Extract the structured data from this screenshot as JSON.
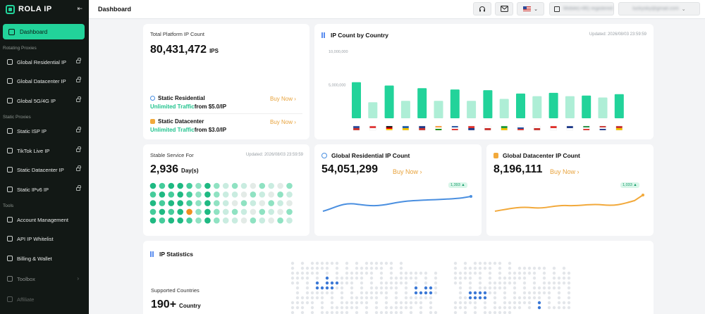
{
  "brand": {
    "name": "ROLA IP"
  },
  "sidebar": {
    "active": "Dashboard",
    "sections": [
      "Rotating Proxies",
      "Static Proxies",
      "Tools"
    ],
    "items": [
      {
        "label": "Global Residential IP",
        "icon": "globe-icon"
      },
      {
        "label": "Global Datacenter IP",
        "icon": "server-icon"
      },
      {
        "label": "Global 5G/4G IP",
        "icon": "signal-icon"
      },
      {
        "label": "Static ISP IP",
        "icon": "home-icon"
      },
      {
        "label": "TikTok Live IP",
        "icon": "tiktok-icon"
      },
      {
        "label": "Static Datacenter IP",
        "icon": "server-icon"
      },
      {
        "label": "Static IPv6 IP",
        "icon": "ipv6-icon"
      },
      {
        "label": "Account Management",
        "icon": "user-icon"
      },
      {
        "label": "API IP Whitelist",
        "icon": "list-icon"
      },
      {
        "label": "Billing & Wallet",
        "icon": "wallet-icon"
      },
      {
        "label": "Toolbox",
        "icon": "toolbox-icon"
      },
      {
        "label": "Affiliate",
        "icon": "affiliate-icon"
      }
    ]
  },
  "header": {
    "title": "Dashboard",
    "language": "US",
    "account_blurred": "Mobile(+86) registered",
    "email_blurred": "luckysky@gmail.com"
  },
  "total_card": {
    "label": "Total Platform IP Count",
    "value": "80,431,472",
    "unit": "IPS",
    "static_residential": {
      "title": "Static Residential",
      "highlight": "Unlimited Traffic",
      "price": "from $5.0/IP",
      "buy": "Buy Now"
    },
    "static_datacenter": {
      "title": "Static Datacenter",
      "highlight": "Unlimited Traffic",
      "price": "from $3.0/IP",
      "buy": "Buy Now"
    }
  },
  "country_card": {
    "title": "IP Count by Country",
    "updated": "Updated: 2026/08/03 23:59:59",
    "chart_data": {
      "type": "bar",
      "categories": [
        "US",
        "SG",
        "DE",
        "SE",
        "GB",
        "IN",
        "FR",
        "TW",
        "KR",
        "BR",
        "RU",
        "JP",
        "CA",
        "AU",
        "MX",
        "TH",
        "ES"
      ],
      "series": [
        {
          "values": [
            5400000,
            2400000,
            4900000,
            2600000,
            4500000,
            2600000,
            4300000,
            2600000,
            4200000,
            2900000,
            3700000,
            3300000,
            3800000,
            3300000,
            3400000,
            3100000,
            3600000
          ]
        }
      ],
      "ylim": [
        0,
        10000000
      ],
      "yticks": [
        "10,000,000",
        "5,000,000"
      ]
    }
  },
  "stable_card": {
    "label": "Stable Service For",
    "updated": "Updated: 2026/08/03 23:59:59",
    "value": "2,936",
    "unit": "Day(s)"
  },
  "residential_card": {
    "title": "Global Residential IP Count",
    "value": "54,051,299",
    "buy": "Buy Now",
    "badge": "1,393 ▲"
  },
  "datacenter_card": {
    "title": "Global Datacenter IP Count",
    "value": "8,196,111",
    "buy": "Buy Now",
    "badge": "1,033 ▲"
  },
  "stats_card": {
    "title": "IP Statistics",
    "supported_label": "Supported Countries",
    "value": "190+",
    "unit": "Country"
  },
  "colors": {
    "accent": "#22d39a",
    "accent_light": "#aeeed6",
    "buy": "#e8a33c",
    "line_blue": "#4a8fe0",
    "line_orange": "#f2a93b"
  }
}
